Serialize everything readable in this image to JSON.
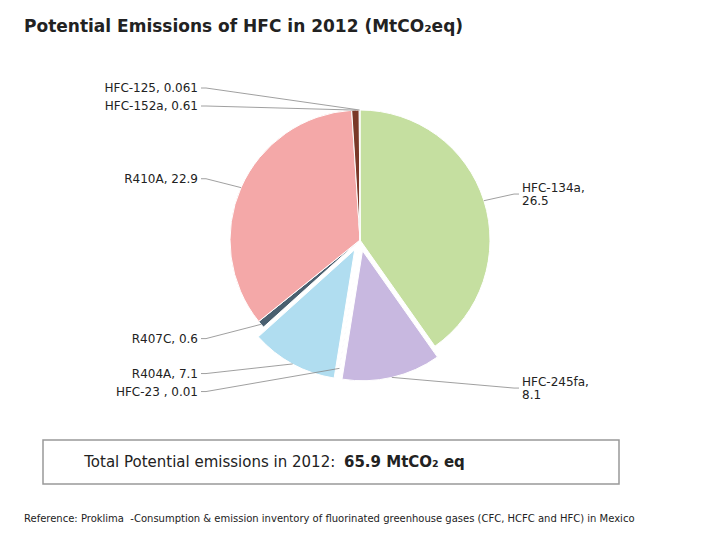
{
  "chart_data": {
    "type": "pie",
    "title": "Potential Emissions of HFC in 2012 (MtCO₂eq)",
    "values": [
      26.5,
      8.1,
      0.01,
      7.1,
      0.6,
      22.9,
      0.61,
      0.061
    ],
    "value_labels": [
      "HFC-134a,\n26.5",
      "HFC-245fa,\n8.1",
      "HFC-23 , 0.01",
      "R404A, 7.1",
      "R407C, 0.6",
      "R410A, 22.9",
      "HFC-152a, 0.61",
      "HFC-125, 0.061"
    ],
    "colors": [
      "#c5dfa0",
      "#c8b8e0",
      "#252060",
      "#b0ddf0",
      "#4a6070",
      "#f4a8a8",
      "#7a3828",
      "#5880a8"
    ],
    "data_labels": true,
    "annotations": [
      "Total Potential emissions in 2012: ",
      "65.9 MtCO₂ eq",
      "Reference: Proklima  -Consumption & emission inventory of fluorinated greenhouse gases (CFC, HCFC and HFC) in Mexico"
    ]
  }
}
